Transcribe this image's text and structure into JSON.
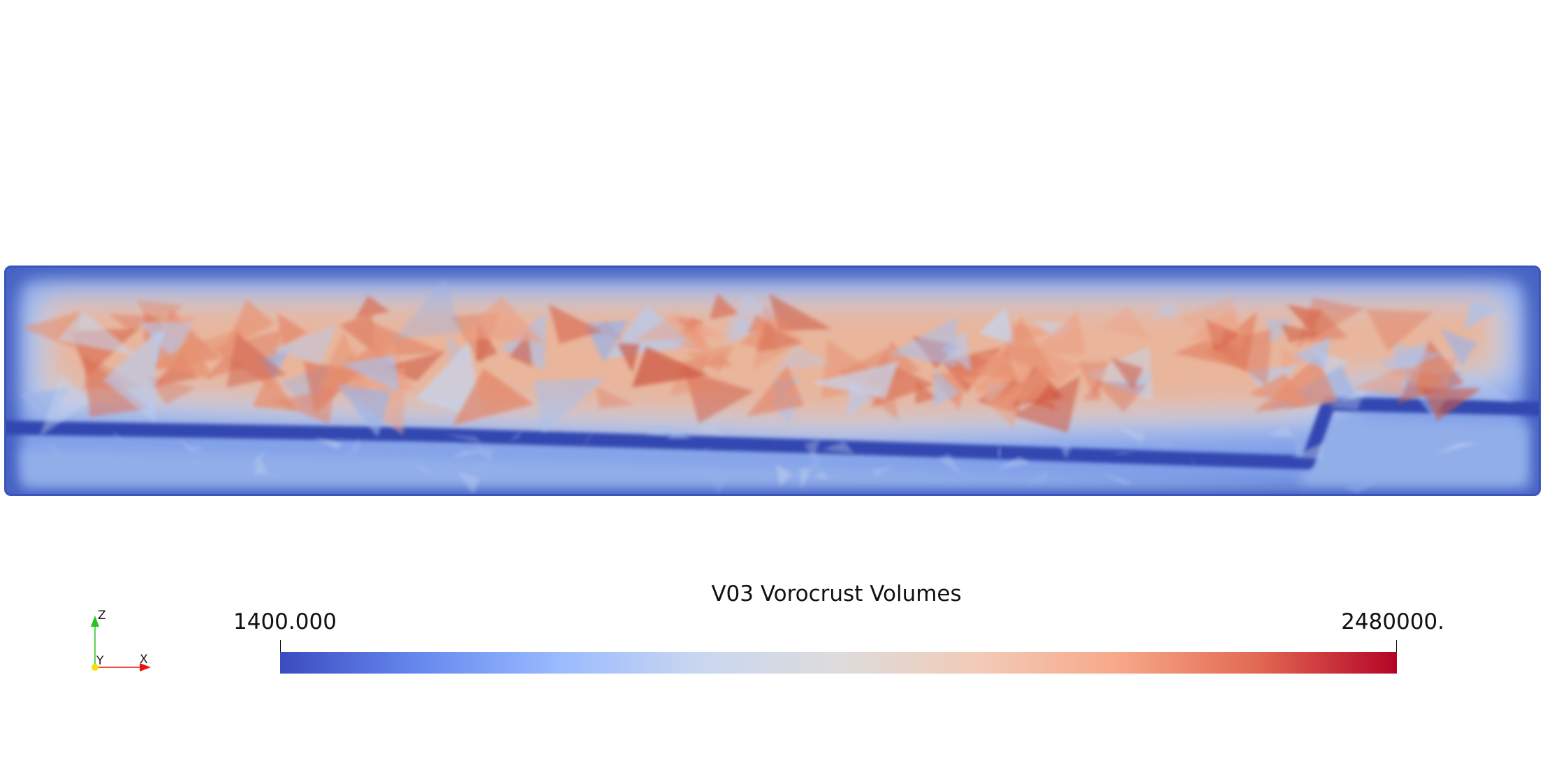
{
  "scene": {
    "field": "V03 Vorocrust Volumes",
    "colormap_low": "#3b4cc0",
    "colormap_mid": "#dddddd",
    "colormap_high": "#b40426"
  },
  "legend": {
    "title": "V03 Vorocrust Volumes",
    "min_label": "1400.000",
    "max_label": "2480000.",
    "range": [
      1400,
      2480000
    ],
    "colorbar_stops": [
      "#3b4cc0",
      "#6788ee",
      "#9abbff",
      "#c9d7f0",
      "#dddcdc",
      "#f2cbb7",
      "#f7a889",
      "#e26952",
      "#b40426"
    ]
  },
  "orientation_axes": {
    "x_label": "X",
    "y_label": "Y",
    "z_label": "Z",
    "x_color": "#e8140d",
    "y_color": "#f3e10c",
    "z_color": "#27c51d"
  }
}
